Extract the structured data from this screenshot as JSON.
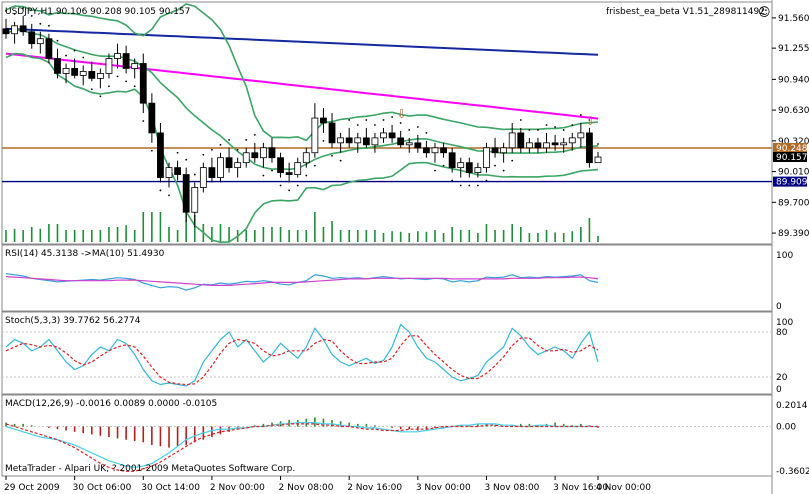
{
  "header": {
    "symbol_line": "USDJPY,H1  90.106 90.208 90.105 90.157",
    "ea_label": "frisbest_ea_beta V1.51_289811492",
    "smiley": "☺"
  },
  "copyright": "MetaTrader - Alpari UK, ? 2001-2009 MetaQuotes Software Corp.",
  "colors": {
    "background": "#ffffff",
    "grid": "#c8c8c8",
    "bull_candle": "#ffffff",
    "bear_candle": "#000000",
    "bollinger": "#3aa564",
    "ma_magenta": "#ff00ff",
    "ma_blue": "#1428a0",
    "support_line": "#000080",
    "resistance_line": "#b06a2a",
    "volume": "#1e8c3c",
    "rsi": "#33a0dc",
    "rsi_ma": "#d040d0",
    "stoch_main": "#33b8d8",
    "stoch_signal": "#e02020",
    "macd_hist_pos": "#2e8b2e",
    "macd_hist_neg": "#b02020",
    "macd_signal": "#40d0f0",
    "macd_main": "#e02020"
  },
  "chart_data": [
    {
      "type": "candlestick",
      "title": "USDJPY,H1",
      "ylim": [
        89.3,
        91.7
      ],
      "y_ticks": [
        "91.560",
        "91.255",
        "90.940",
        "90.630",
        "90.320",
        "90.010",
        "89.700",
        "89.390"
      ],
      "x_ticks": [
        "29 Oct 2009",
        "30 Oct 06:00",
        "30 Oct 14:00",
        "2 Nov 00:00",
        "2 Nov 08:00",
        "2 Nov 16:00",
        "3 Nov 00:00",
        "3 Nov 08:00",
        "3 Nov 16:00",
        "4 Nov 00:00"
      ],
      "price_labels": [
        {
          "text": "90.248",
          "value": 90.248,
          "bg": "#b06a2a"
        },
        {
          "text": "90.157",
          "value": 90.157,
          "bg": "#000000"
        },
        {
          "text": "89.909",
          "value": 89.909,
          "bg": "#000080"
        }
      ],
      "horizontal_lines": [
        {
          "value": 90.248,
          "color": "#b06a2a"
        },
        {
          "value": 89.909,
          "color": "#000080"
        }
      ],
      "candles": [
        [
          91.45,
          91.55,
          91.35,
          91.4
        ],
        [
          91.4,
          91.52,
          91.3,
          91.48
        ],
        [
          91.48,
          91.58,
          91.38,
          91.42
        ],
        [
          91.42,
          91.5,
          91.25,
          91.3
        ],
        [
          91.3,
          91.42,
          91.2,
          91.35
        ],
        [
          91.35,
          91.4,
          91.1,
          91.15
        ],
        [
          91.15,
          91.25,
          90.95,
          91.0
        ],
        [
          91.0,
          91.1,
          90.9,
          91.05
        ],
        [
          91.05,
          91.15,
          90.95,
          90.98
        ],
        [
          90.98,
          91.08,
          90.88,
          91.02
        ],
        [
          91.02,
          91.12,
          90.92,
          90.95
        ],
        [
          90.95,
          91.05,
          90.85,
          91.0
        ],
        [
          91.0,
          91.2,
          90.95,
          91.15
        ],
        [
          91.15,
          91.3,
          91.05,
          91.2
        ],
        [
          91.2,
          91.28,
          91.0,
          91.05
        ],
        [
          91.05,
          91.15,
          90.95,
          91.1
        ],
        [
          91.1,
          91.2,
          90.6,
          90.7
        ],
        [
          90.7,
          90.8,
          90.3,
          90.4
        ],
        [
          90.4,
          90.5,
          89.9,
          89.95
        ],
        [
          89.95,
          90.1,
          89.85,
          90.05
        ],
        [
          90.05,
          90.12,
          89.92,
          89.98
        ],
        [
          89.98,
          90.05,
          89.5,
          89.6
        ],
        [
          89.6,
          89.9,
          89.45,
          89.85
        ],
        [
          89.85,
          90.1,
          89.8,
          90.05
        ],
        [
          90.05,
          90.15,
          89.9,
          89.95
        ],
        [
          89.95,
          90.2,
          89.9,
          90.15
        ],
        [
          90.15,
          90.25,
          90.0,
          90.05
        ],
        [
          90.05,
          90.15,
          89.95,
          90.1
        ],
        [
          90.1,
          90.25,
          90.05,
          90.2
        ],
        [
          90.2,
          90.3,
          90.1,
          90.15
        ],
        [
          90.15,
          90.3,
          90.05,
          90.25
        ],
        [
          90.25,
          90.35,
          90.1,
          90.15
        ],
        [
          90.15,
          90.2,
          89.95,
          90.0
        ],
        [
          90.0,
          90.1,
          89.9,
          89.98
        ],
        [
          89.98,
          90.15,
          89.95,
          90.1
        ],
        [
          90.1,
          90.25,
          90.05,
          90.2
        ],
        [
          90.2,
          90.7,
          90.15,
          90.55
        ],
        [
          90.55,
          90.65,
          90.4,
          90.5
        ],
        [
          90.5,
          90.6,
          90.25,
          90.3
        ],
        [
          90.3,
          90.4,
          90.2,
          90.35
        ],
        [
          90.35,
          90.45,
          90.25,
          90.3
        ],
        [
          90.3,
          90.4,
          90.2,
          90.35
        ],
        [
          90.35,
          90.45,
          90.25,
          90.28
        ],
        [
          90.28,
          90.4,
          90.2,
          90.35
        ],
        [
          90.35,
          90.45,
          90.3,
          90.4
        ],
        [
          90.4,
          90.48,
          90.3,
          90.35
        ],
        [
          90.35,
          90.42,
          90.25,
          90.28
        ],
        [
          90.28,
          90.35,
          90.2,
          90.3
        ],
        [
          90.3,
          90.38,
          90.2,
          90.25
        ],
        [
          90.25,
          90.32,
          90.15,
          90.2
        ],
        [
          90.2,
          90.3,
          90.1,
          90.25
        ],
        [
          90.25,
          90.3,
          90.15,
          90.2
        ],
        [
          90.2,
          90.25,
          90.0,
          90.05
        ],
        [
          90.05,
          90.15,
          89.95,
          90.1
        ],
        [
          90.1,
          90.15,
          89.95,
          90.0
        ],
        [
          90.0,
          90.1,
          89.95,
          90.05
        ],
        [
          90.05,
          90.3,
          90.0,
          90.25
        ],
        [
          90.25,
          90.35,
          90.15,
          90.2
        ],
        [
          90.2,
          90.3,
          90.1,
          90.25
        ],
        [
          90.25,
          90.5,
          90.2,
          90.4
        ],
        [
          90.4,
          90.45,
          90.2,
          90.25
        ],
        [
          90.25,
          90.35,
          90.2,
          90.3
        ],
        [
          90.3,
          90.35,
          90.2,
          90.25
        ],
        [
          90.25,
          90.4,
          90.2,
          90.3
        ],
        [
          90.3,
          90.38,
          90.22,
          90.28
        ],
        [
          90.28,
          90.35,
          90.2,
          90.3
        ],
        [
          90.3,
          90.4,
          90.22,
          90.35
        ],
        [
          90.35,
          90.5,
          90.25,
          90.4
        ],
        [
          90.4,
          90.45,
          90.05,
          90.1
        ],
        [
          90.1,
          90.208,
          90.105,
          90.157
        ]
      ]
    },
    {
      "type": "line",
      "title": "RSI(14) 45.3138  ->MA(10) 51.4930",
      "ylim": [
        0,
        100
      ],
      "y_ticks": [
        "100",
        "0"
      ],
      "series": [
        {
          "name": "RSI(14)",
          "values": [
            60,
            58,
            56,
            52,
            50,
            48,
            46,
            47,
            48,
            49,
            50,
            49,
            51,
            53,
            52,
            50,
            44,
            40,
            36,
            38,
            37,
            32,
            36,
            42,
            41,
            44,
            42,
            44,
            47,
            46,
            48,
            46,
            42,
            41,
            45,
            48,
            58,
            56,
            52,
            53,
            52,
            53,
            51,
            53,
            55,
            53,
            51,
            52,
            51,
            50,
            52,
            51,
            46,
            48,
            46,
            48,
            54,
            53,
            54,
            58,
            53,
            54,
            53,
            55,
            54,
            55,
            56,
            58,
            48,
            45
          ]
        },
        {
          "name": "MA(10)",
          "values": [
            55,
            54,
            53,
            52,
            51,
            50,
            49,
            48,
            48,
            48,
            48,
            48,
            48,
            49,
            49,
            49,
            48,
            47,
            46,
            45,
            44,
            43,
            42,
            41,
            40,
            40,
            40,
            41,
            42,
            43,
            44,
            45,
            45,
            45,
            45,
            46,
            47,
            48,
            49,
            50,
            51,
            51,
            51,
            52,
            52,
            52,
            52,
            52,
            52,
            52,
            52,
            52,
            51,
            51,
            51,
            51,
            51,
            51,
            51,
            52,
            52,
            52,
            52,
            53,
            53,
            53,
            54,
            54,
            53,
            51
          ]
        }
      ]
    },
    {
      "type": "line",
      "title": "Stoch(5,3,3) 39.7762 56.2774",
      "ylim": [
        0,
        100
      ],
      "y_ticks": [
        "100",
        "80",
        "20",
        "0"
      ],
      "series": [
        {
          "name": "Stoch(5,3,3)",
          "values": [
            60,
            70,
            65,
            55,
            60,
            70,
            55,
            40,
            30,
            35,
            50,
            60,
            55,
            70,
            65,
            50,
            30,
            15,
            10,
            12,
            10,
            8,
            15,
            40,
            55,
            70,
            80,
            60,
            70,
            55,
            40,
            50,
            65,
            55,
            45,
            60,
            85,
            70,
            50,
            40,
            35,
            40,
            45,
            38,
            42,
            60,
            90,
            80,
            60,
            45,
            40,
            30,
            20,
            15,
            18,
            22,
            40,
            50,
            60,
            85,
            75,
            60,
            50,
            55,
            60,
            55,
            45,
            65,
            80,
            40
          ]
        },
        {
          "name": "Signal",
          "values": [
            55,
            60,
            65,
            63,
            60,
            62,
            60,
            52,
            42,
            36,
            40,
            48,
            55,
            60,
            63,
            60,
            48,
            33,
            20,
            13,
            11,
            10,
            11,
            20,
            35,
            52,
            65,
            70,
            68,
            65,
            55,
            48,
            50,
            55,
            55,
            55,
            65,
            70,
            68,
            55,
            45,
            38,
            38,
            40,
            40,
            45,
            62,
            75,
            75,
            62,
            50,
            40,
            30,
            22,
            18,
            18,
            25,
            35,
            47,
            62,
            72,
            72,
            62,
            55,
            55,
            57,
            53,
            55,
            62,
            56
          ]
        }
      ]
    },
    {
      "type": "bar",
      "title": "MACD(12,26,9) -0.0016 0.0089 0.0000 -0.0105",
      "ylim": [
        -0.3602,
        0.2014
      ],
      "y_ticks": [
        "0.2014",
        "0.00",
        "-0.3602"
      ],
      "series": [
        {
          "name": "MACD histogram",
          "values": [
            0.03,
            0.02,
            0.02,
            0.01,
            0.0,
            -0.01,
            -0.02,
            -0.03,
            -0.04,
            -0.05,
            -0.06,
            -0.07,
            -0.08,
            -0.09,
            -0.1,
            -0.11,
            -0.12,
            -0.14,
            -0.15,
            -0.16,
            -0.15,
            -0.14,
            -0.12,
            -0.1,
            -0.08,
            -0.06,
            -0.04,
            -0.02,
            0.0,
            0.01,
            0.02,
            0.03,
            0.04,
            0.05,
            0.05,
            0.06,
            0.07,
            0.06,
            0.05,
            0.04,
            0.03,
            0.02,
            0.02,
            0.01,
            0.0,
            -0.01,
            -0.02,
            -0.02,
            -0.03,
            -0.02,
            -0.01,
            -0.01,
            0.0,
            0.01,
            0.01,
            0.02,
            0.02,
            0.01,
            0.0,
            0.01,
            0.02,
            0.02,
            0.01,
            0.02,
            0.03,
            0.02,
            0.01,
            0.02,
            0.01,
            -0.01
          ]
        },
        {
          "name": "Signal",
          "values": [
            0.0,
            -0.02,
            -0.04,
            -0.06,
            -0.08,
            -0.09,
            -0.1,
            -0.12,
            -0.14,
            -0.17,
            -0.2,
            -0.23,
            -0.26,
            -0.28,
            -0.3,
            -0.31,
            -0.3,
            -0.28,
            -0.24,
            -0.2,
            -0.15,
            -0.1,
            -0.07,
            -0.05,
            -0.03,
            -0.02,
            -0.02,
            -0.01,
            -0.01,
            0.0,
            0.0,
            0.01,
            0.02,
            0.02,
            0.03,
            0.03,
            0.03,
            0.02,
            0.02,
            0.01,
            0.0,
            0.0,
            -0.01,
            -0.01,
            -0.02,
            -0.03,
            -0.04,
            -0.04,
            -0.04,
            -0.03,
            -0.02,
            -0.01,
            0.0,
            0.01,
            0.01,
            0.02,
            0.02,
            0.02,
            0.01,
            0.01,
            0.0,
            0.0,
            0.01,
            0.01,
            0.0,
            0.0,
            0.0,
            0.0,
            0.0,
            0.0
          ]
        },
        {
          "name": "MACD",
          "values": [
            0.02,
            0.0,
            -0.02,
            -0.04,
            -0.06,
            -0.08,
            -0.1,
            -0.13,
            -0.16,
            -0.2,
            -0.24,
            -0.28,
            -0.31,
            -0.33,
            -0.34,
            -0.34,
            -0.32,
            -0.3,
            -0.27,
            -0.23,
            -0.19,
            -0.15,
            -0.11,
            -0.08,
            -0.06,
            -0.04,
            -0.03,
            -0.02,
            -0.01,
            0.0,
            0.0,
            0.01,
            0.01,
            0.02,
            0.02,
            0.02,
            0.02,
            0.01,
            0.01,
            0.0,
            0.0,
            -0.01,
            -0.02,
            -0.02,
            -0.03,
            -0.03,
            -0.03,
            -0.02,
            -0.02,
            -0.02,
            -0.01,
            0.0,
            0.0,
            0.0,
            0.0,
            0.0,
            0.01,
            0.01,
            0.0,
            0.0,
            0.0,
            0.0,
            0.0,
            0.0,
            0.0,
            0.0,
            0.0,
            0.0,
            0.0,
            0.0
          ]
        }
      ]
    }
  ]
}
